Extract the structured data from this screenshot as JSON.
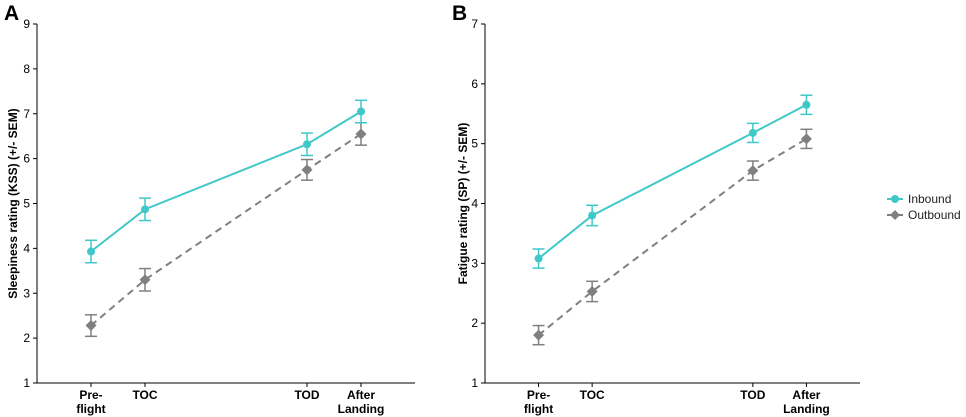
{
  "chart_data": [
    {
      "panel": "A",
      "type": "line",
      "categories": [
        "Pre-\nflight",
        "TOC",
        "TOD",
        "After\nLanding"
      ],
      "x": [
        1,
        2,
        5,
        6
      ],
      "ylabel": "Sleepiness rating (KSS) (+/- SEM)",
      "xlabel": "",
      "ylim": [
        1,
        9
      ],
      "yticks": [
        1,
        2,
        3,
        4,
        5,
        6,
        7,
        8,
        9
      ],
      "grid": false,
      "series": [
        {
          "name": "Inbound",
          "marker": "circle",
          "linestyle": "solid",
          "values": [
            3.93,
            4.87,
            6.32,
            7.05
          ],
          "sem": [
            0.25,
            0.25,
            0.25,
            0.25
          ]
        },
        {
          "name": "Outbound",
          "marker": "diamond",
          "linestyle": "dashed",
          "values": [
            2.28,
            3.3,
            5.75,
            6.55
          ],
          "sem": [
            0.24,
            0.25,
            0.23,
            0.25
          ]
        }
      ]
    },
    {
      "panel": "B",
      "type": "line",
      "categories": [
        "Pre-\nflight",
        "TOC",
        "TOD",
        "After\nLanding"
      ],
      "x": [
        1,
        2,
        5,
        6
      ],
      "ylabel": "Fatigue rating (SP) (+/- SEM)",
      "xlabel": "",
      "ylim": [
        1,
        7
      ],
      "yticks": [
        1,
        2,
        3,
        4,
        5,
        6,
        7
      ],
      "grid": false,
      "series": [
        {
          "name": "Inbound",
          "marker": "circle",
          "linestyle": "solid",
          "values": [
            3.08,
            3.8,
            5.18,
            5.65
          ],
          "sem": [
            0.16,
            0.17,
            0.16,
            0.16
          ]
        },
        {
          "name": "Outbound",
          "marker": "diamond",
          "linestyle": "dashed",
          "values": [
            1.8,
            2.53,
            4.55,
            5.08
          ],
          "sem": [
            0.16,
            0.17,
            0.16,
            0.16
          ]
        }
      ]
    }
  ],
  "legend": {
    "placement": "right",
    "items": [
      {
        "name": "Inbound",
        "marker": "circle",
        "color": "#40c8c8"
      },
      {
        "name": "Outbound",
        "marker": "diamond",
        "color": "#808080"
      }
    ]
  },
  "colors": {
    "Inbound": "#40c8c8",
    "Outbound": "#808080"
  }
}
